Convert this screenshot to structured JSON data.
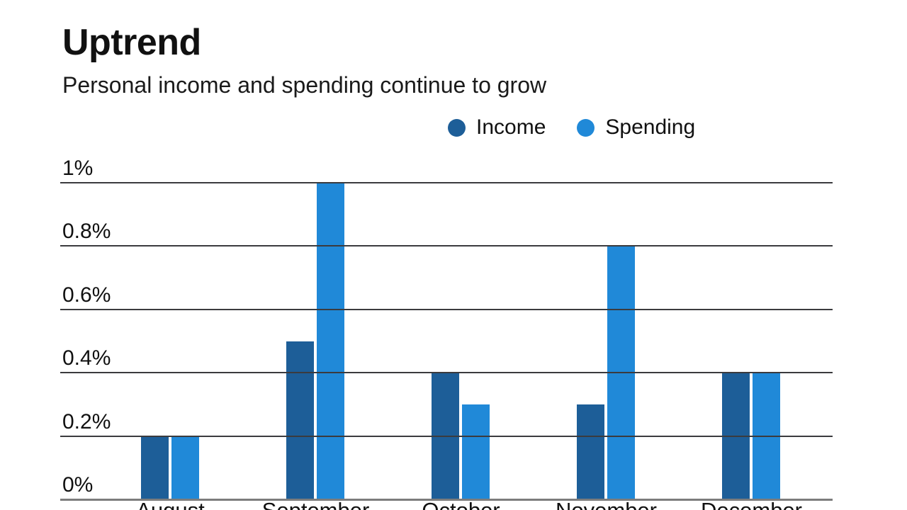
{
  "header": {
    "title": "Uptrend",
    "subtitle": "Personal income and spending continue to grow"
  },
  "colors": {
    "income": "#1d5e98",
    "spending": "#2089d8",
    "gridline": "#3b3b3e",
    "baseline": "#7d7d7d",
    "text": "#111111"
  },
  "chart_data": {
    "type": "bar",
    "title": "Uptrend",
    "subtitle": "Personal income and spending continue to grow",
    "categories": [
      "August",
      "September",
      "October",
      "November",
      "December"
    ],
    "series": [
      {
        "name": "Income",
        "color": "#1d5e98",
        "values": [
          0.2,
          0.5,
          0.4,
          0.3,
          0.4
        ]
      },
      {
        "name": "Spending",
        "color": "#2089d8",
        "values": [
          0.2,
          1.0,
          0.3,
          0.8,
          0.4
        ]
      }
    ],
    "unit": "%",
    "ylim": [
      0,
      1
    ],
    "yticks": [
      {
        "value": 0,
        "label": "0%"
      },
      {
        "value": 0.2,
        "label": "0.2%"
      },
      {
        "value": 0.4,
        "label": "0.4%"
      },
      {
        "value": 0.6,
        "label": "0.6%"
      },
      {
        "value": 0.8,
        "label": "0.8%"
      },
      {
        "value": 1,
        "label": "1%"
      }
    ],
    "grid": true,
    "legend_position": "top-right",
    "xlabel": "",
    "ylabel": ""
  }
}
